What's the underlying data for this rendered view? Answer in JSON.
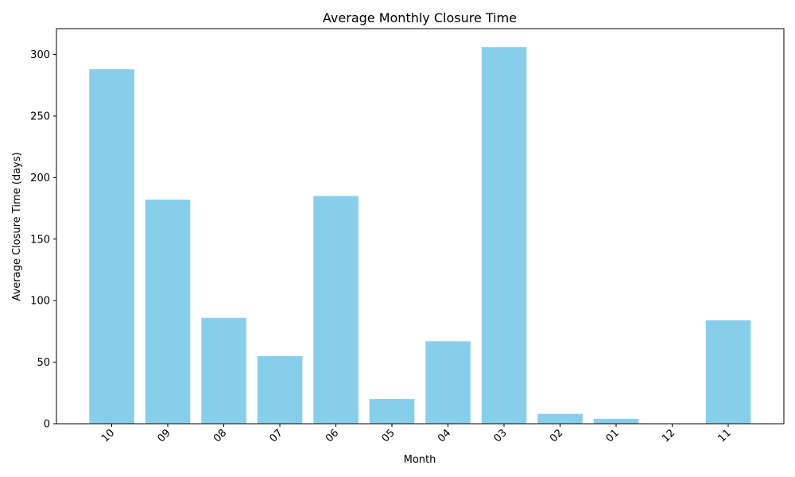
{
  "chart_data": {
    "type": "bar",
    "title": "Average Monthly Closure Time",
    "xlabel": "Month",
    "ylabel": "Average Closure Time (days)",
    "categories": [
      "10",
      "09",
      "08",
      "07",
      "06",
      "05",
      "04",
      "03",
      "02",
      "01",
      "12",
      "11"
    ],
    "values": [
      288,
      182,
      86,
      55,
      185,
      20,
      67,
      306,
      8,
      4,
      0,
      84
    ],
    "ylim": [
      0,
      321
    ],
    "yticks": [
      0,
      50,
      100,
      150,
      200,
      250,
      300
    ],
    "bar_color": "#87CEEB",
    "grid": false,
    "xtick_rotation": 45
  }
}
